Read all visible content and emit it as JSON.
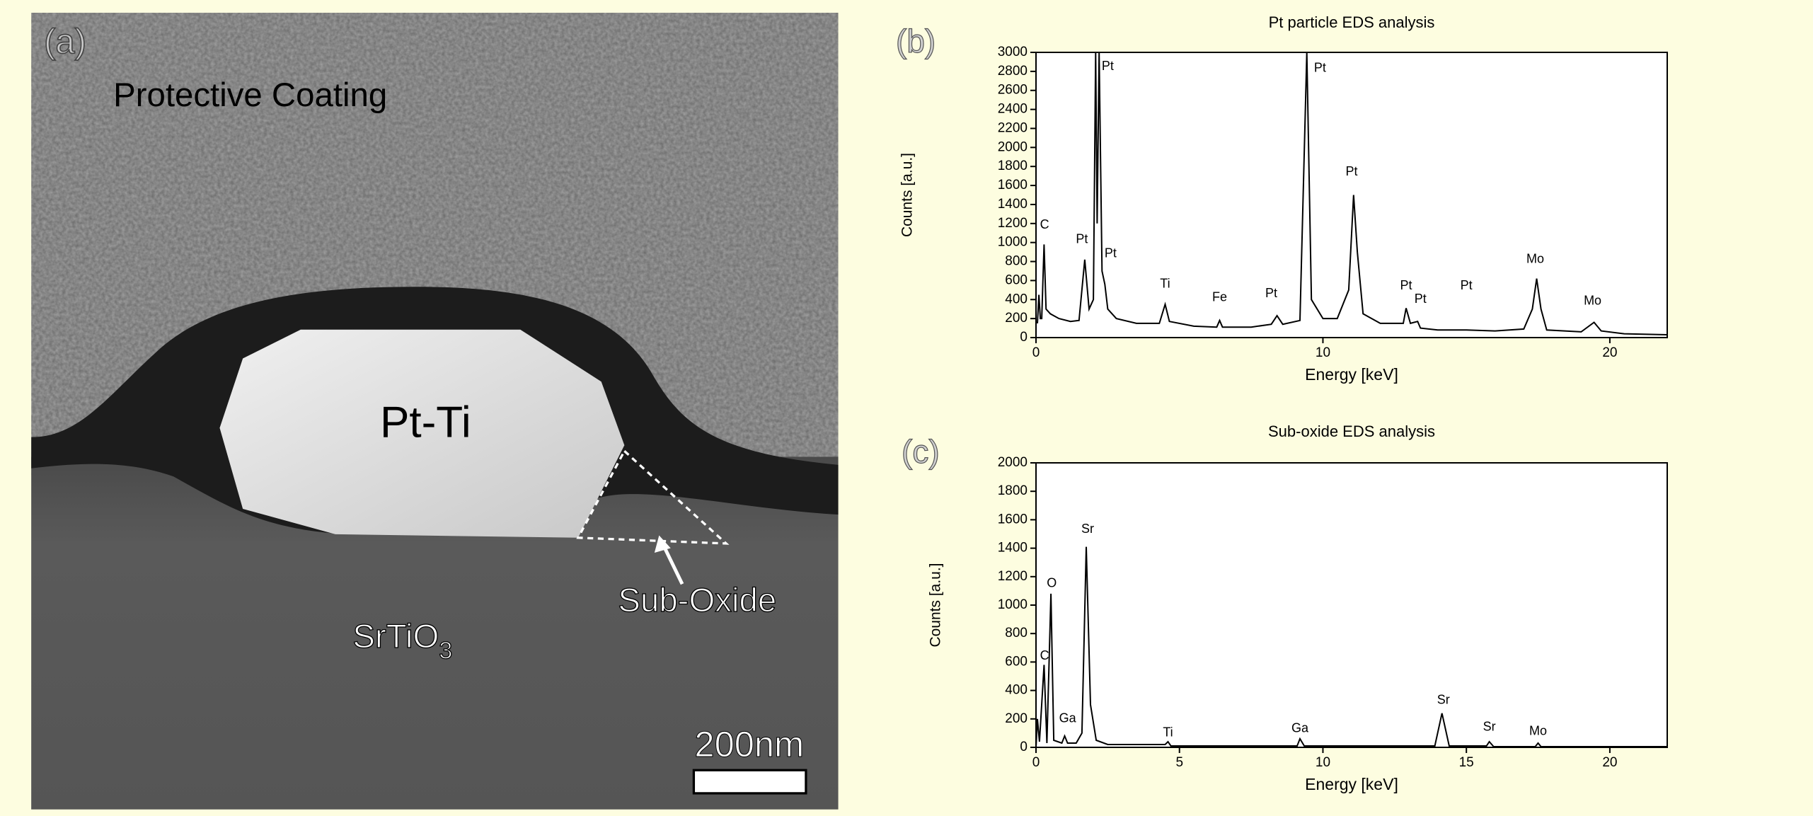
{
  "image_panel": {
    "panel_label": "(a)",
    "coating_label": "Protective Coating",
    "particle_label": "Pt-Ti",
    "suboxide_label": "Sub-Oxide",
    "substrate_label": {
      "text": "SrTiO",
      "subscript": "3"
    },
    "scale_bar_label": "200nm"
  },
  "chart_data": [
    {
      "type": "line",
      "panel_label": "(b)",
      "title": "Pt particle EDS analysis",
      "xlabel": "Energy [keV]",
      "ylabel": "Counts [a.u.]",
      "xlim": [
        0,
        22
      ],
      "ylim": [
        0,
        3000
      ],
      "xticks": [
        0,
        10,
        20
      ],
      "yticks": [
        0,
        200,
        400,
        600,
        800,
        1000,
        1200,
        1400,
        1600,
        1800,
        2000,
        2200,
        2400,
        2600,
        2800,
        3000
      ],
      "color": "#000000",
      "x": [
        0.05,
        0.1,
        0.15,
        0.2,
        0.28,
        0.35,
        0.5,
        0.8,
        1.2,
        1.5,
        1.7,
        1.85,
        2.0,
        2.08,
        2.13,
        2.2,
        2.3,
        2.4,
        2.5,
        2.8,
        3.5,
        4.3,
        4.5,
        4.65,
        5.5,
        6.3,
        6.4,
        6.5,
        7.5,
        8.2,
        8.4,
        8.6,
        9.2,
        9.44,
        9.6,
        10,
        10.5,
        10.9,
        11.07,
        11.2,
        11.4,
        12,
        12.8,
        12.9,
        13.05,
        13.3,
        13.4,
        14,
        15,
        16,
        17,
        17.3,
        17.45,
        17.6,
        17.8,
        19,
        19.45,
        19.7,
        20.5,
        22
      ],
      "values": [
        150,
        450,
        200,
        200,
        980,
        300,
        250,
        200,
        170,
        180,
        820,
        300,
        400,
        3000,
        1200,
        3000,
        700,
        560,
        300,
        200,
        150,
        150,
        350,
        170,
        120,
        110,
        180,
        110,
        110,
        140,
        230,
        140,
        180,
        3000,
        400,
        200,
        200,
        500,
        1500,
        900,
        250,
        150,
        150,
        310,
        150,
        170,
        100,
        80,
        80,
        70,
        90,
        300,
        620,
        300,
        80,
        60,
        160,
        70,
        40,
        30
      ],
      "annotations": [
        {
          "text": "C",
          "x": 0.3,
          "y": 1180
        },
        {
          "text": "Pt",
          "x": 1.6,
          "y": 1030
        },
        {
          "text": "Pt",
          "x": 2.6,
          "y": 880
        },
        {
          "text": "Pt",
          "x": 2.5,
          "y": 2850
        },
        {
          "text": "Ti",
          "x": 4.5,
          "y": 560
        },
        {
          "text": "Fe",
          "x": 6.4,
          "y": 420
        },
        {
          "text": "Pt",
          "x": 8.2,
          "y": 460
        },
        {
          "text": "Pt",
          "x": 9.9,
          "y": 2830
        },
        {
          "text": "Pt",
          "x": 11.0,
          "y": 1740
        },
        {
          "text": "Pt",
          "x": 12.9,
          "y": 540
        },
        {
          "text": "Pt",
          "x": 13.4,
          "y": 400
        },
        {
          "text": "Pt",
          "x": 15.0,
          "y": 540
        },
        {
          "text": "Mo",
          "x": 17.4,
          "y": 820
        },
        {
          "text": "Mo",
          "x": 19.4,
          "y": 380
        }
      ]
    },
    {
      "type": "line",
      "panel_label": "(c)",
      "title": "Sub-oxide EDS analysis",
      "xlabel": "Energy [keV]",
      "ylabel": "Counts [a.u.]",
      "xlim": [
        0,
        22
      ],
      "ylim": [
        0,
        2000
      ],
      "xticks": [
        0,
        5,
        10,
        15,
        20
      ],
      "yticks": [
        0,
        200,
        400,
        600,
        800,
        1000,
        1200,
        1400,
        1600,
        1800,
        2000
      ],
      "color": "#000000",
      "x": [
        0,
        0.05,
        0.12,
        0.28,
        0.38,
        0.52,
        0.62,
        0.9,
        1.0,
        1.1,
        1.4,
        1.6,
        1.75,
        1.9,
        2.1,
        2.5,
        4.5,
        4.6,
        4.7,
        9.1,
        9.2,
        9.35,
        13.9,
        14.15,
        14.4,
        15.7,
        15.8,
        15.95,
        17.4,
        17.5,
        17.6,
        22
      ],
      "values": [
        0,
        200,
        40,
        580,
        30,
        1080,
        50,
        30,
        80,
        30,
        30,
        100,
        1410,
        300,
        50,
        20,
        20,
        40,
        10,
        10,
        60,
        10,
        10,
        240,
        10,
        10,
        40,
        5,
        5,
        30,
        5,
        5
      ],
      "annotations": [
        {
          "text": "C",
          "x": 0.3,
          "y": 640
        },
        {
          "text": "O",
          "x": 0.55,
          "y": 1150
        },
        {
          "text": "Sr",
          "x": 1.8,
          "y": 1530
        },
        {
          "text": "Ga",
          "x": 1.1,
          "y": 200
        },
        {
          "text": "Ti",
          "x": 4.6,
          "y": 100
        },
        {
          "text": "Ga",
          "x": 9.2,
          "y": 130
        },
        {
          "text": "Sr",
          "x": 14.2,
          "y": 330
        },
        {
          "text": "Sr",
          "x": 15.8,
          "y": 140
        },
        {
          "text": "Mo",
          "x": 17.5,
          "y": 110
        }
      ]
    }
  ]
}
